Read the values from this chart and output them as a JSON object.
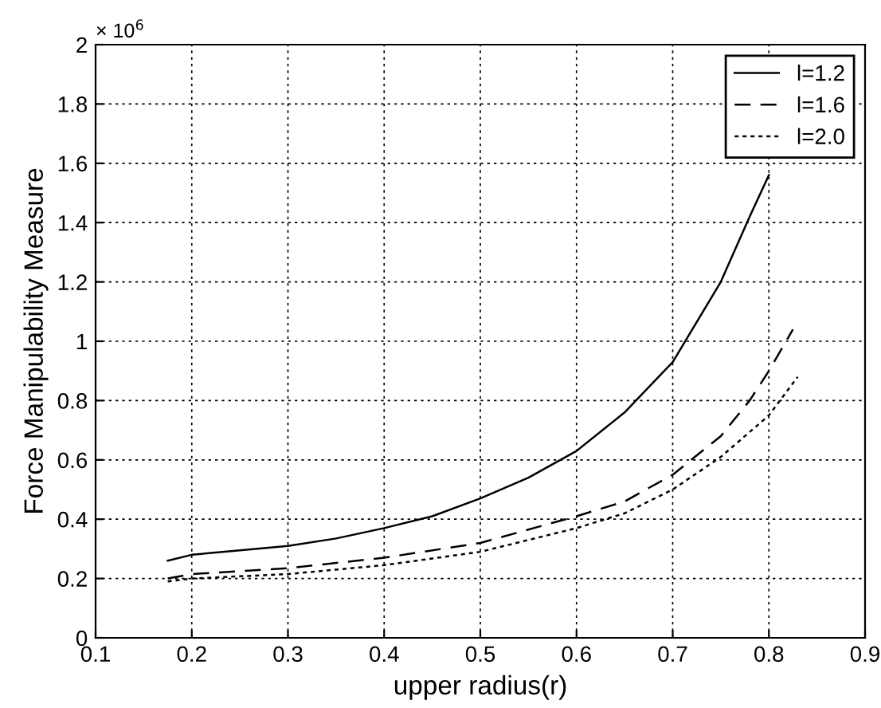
{
  "chart_data": {
    "type": "line",
    "xlabel": "upper radius(r)",
    "ylabel": "Force Manipulability Measure",
    "annotations": [
      "× 10$^{6}$"
    ],
    "xlim": [
      0.1,
      0.9
    ],
    "xticks": [
      0.1,
      0.2,
      0.3,
      0.4,
      0.5,
      0.6,
      0.7,
      0.8,
      0.9
    ],
    "ylim": [
      0,
      2
    ],
    "yticks": [
      0,
      0.2,
      0.4,
      0.6,
      0.8,
      1,
      1.2,
      1.4,
      1.6,
      1.8,
      2
    ],
    "grid": true,
    "legend": "top right",
    "marker": "none",
    "series": [
      {
        "name": "l=1.2",
        "color": "#000000",
        "line_style": "solid",
        "x": [
          0.175,
          0.2,
          0.25,
          0.3,
          0.35,
          0.4,
          0.45,
          0.5,
          0.55,
          0.6,
          0.65,
          0.7,
          0.75,
          0.78,
          0.8
        ],
        "values": [
          0.26,
          0.28,
          0.295,
          0.31,
          0.335,
          0.37,
          0.41,
          0.47,
          0.54,
          0.63,
          0.76,
          0.93,
          1.2,
          1.42,
          1.56
        ]
      },
      {
        "name": "l=1.6",
        "color": "#000000",
        "line_style": "dashed",
        "x": [
          0.175,
          0.2,
          0.3,
          0.4,
          0.5,
          0.6,
          0.65,
          0.7,
          0.75,
          0.78,
          0.8,
          0.825
        ],
        "values": [
          0.2,
          0.215,
          0.235,
          0.27,
          0.32,
          0.41,
          0.46,
          0.55,
          0.68,
          0.8,
          0.9,
          1.04
        ]
      },
      {
        "name": "l=2.0",
        "color": "#000000",
        "line_style": "dotted",
        "x": [
          0.175,
          0.2,
          0.3,
          0.4,
          0.5,
          0.6,
          0.65,
          0.7,
          0.75,
          0.8,
          0.83
        ],
        "values": [
          0.19,
          0.2,
          0.215,
          0.245,
          0.29,
          0.37,
          0.42,
          0.5,
          0.61,
          0.75,
          0.88
        ]
      }
    ]
  }
}
